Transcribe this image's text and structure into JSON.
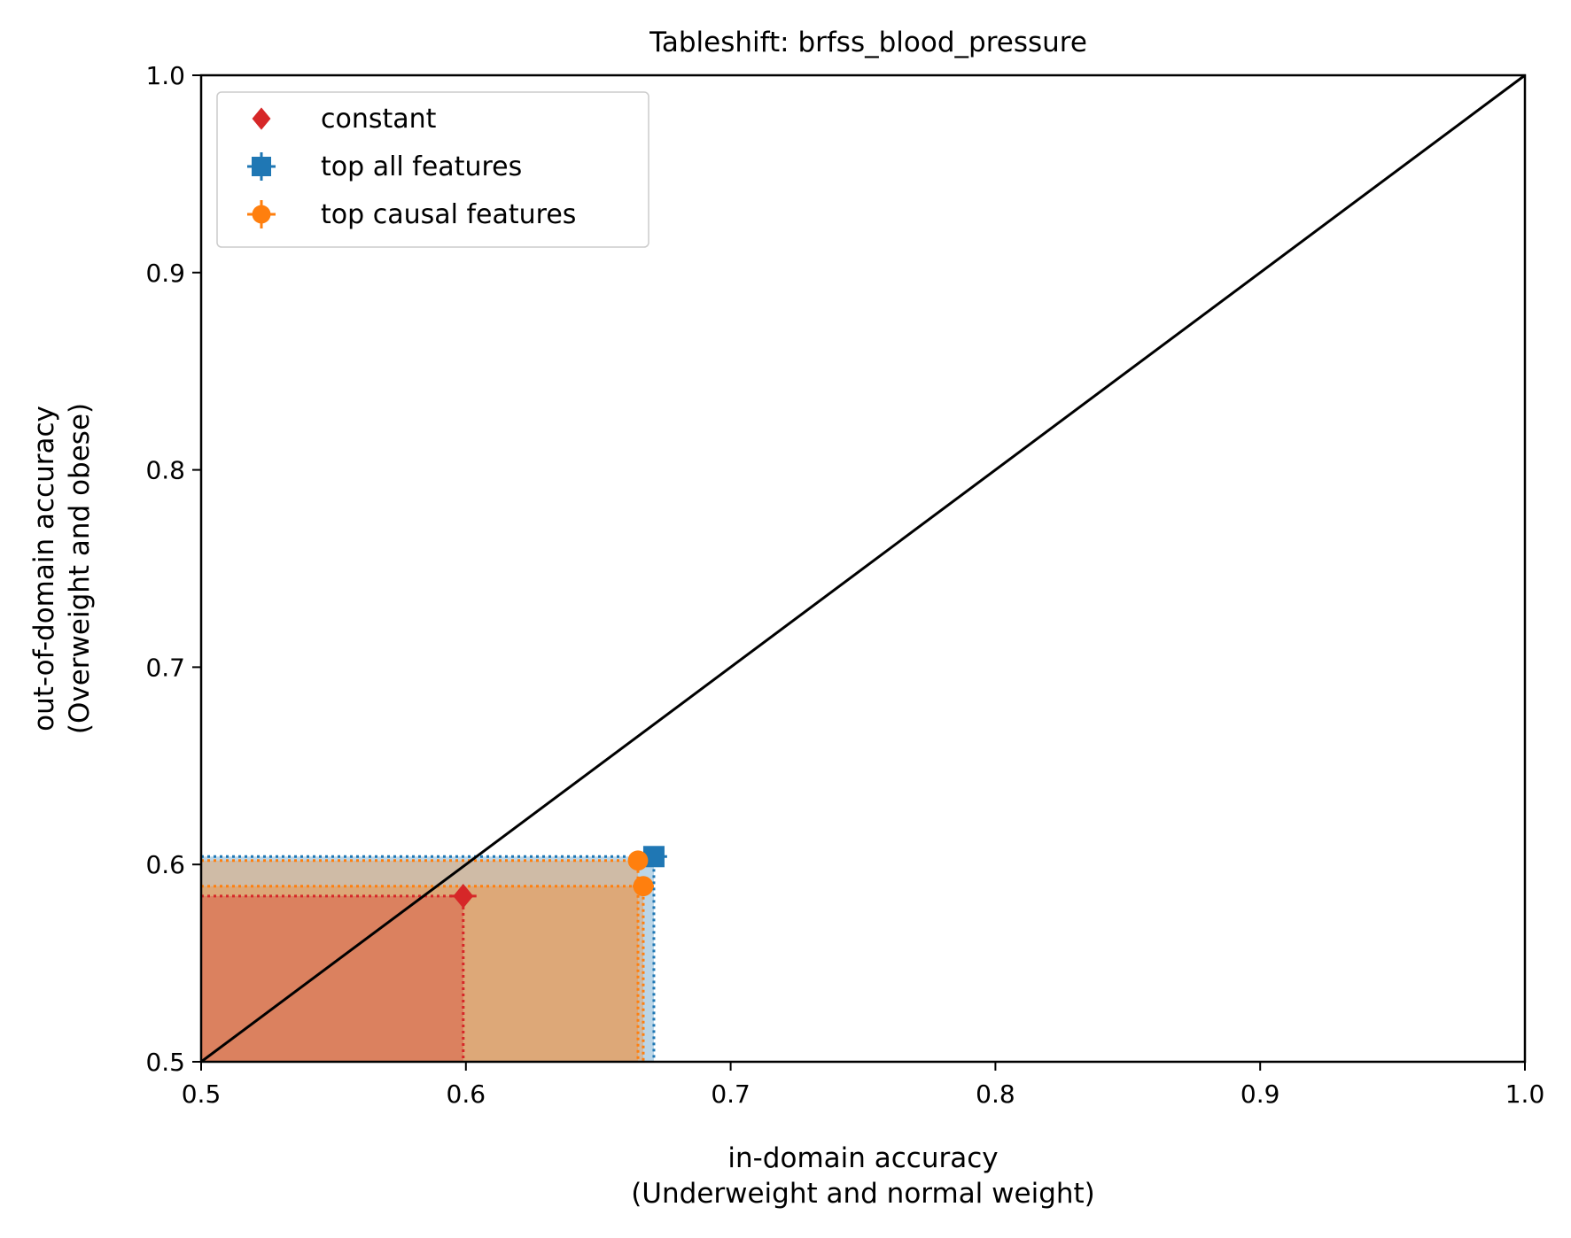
{
  "chart_data": {
    "type": "scatter",
    "title": "Tableshift: brfss_blood_pressure",
    "xlabel": [
      "in-domain accuracy",
      "(Underweight and normal weight)"
    ],
    "ylabel": [
      "out-of-domain accuracy",
      "(Overweight and obese)"
    ],
    "xlim": [
      0.5,
      1.0
    ],
    "ylim": [
      0.5,
      1.0
    ],
    "xticks": [
      "0.5",
      "0.6",
      "0.7",
      "0.8",
      "0.9",
      "1.0"
    ],
    "yticks": [
      "0.5",
      "0.6",
      "0.7",
      "0.8",
      "0.9",
      "1.0"
    ],
    "grid": false,
    "legend_position": "top-left",
    "diagonal": {
      "from": [
        0.5,
        0.5
      ],
      "to": [
        1.0,
        1.0
      ],
      "color": "#000000"
    },
    "series": [
      {
        "name": "constant",
        "marker": "diamond",
        "color": "#d62728",
        "points": [
          {
            "x": 0.599,
            "y": 0.584,
            "xerr": 0.005,
            "yerr": 0.0
          }
        ]
      },
      {
        "name": "top all features",
        "marker": "square",
        "color": "#1f77b4",
        "points": [
          {
            "x": 0.671,
            "y": 0.604,
            "xerr": 0.005,
            "yerr": 0.002
          }
        ]
      },
      {
        "name": "top causal features",
        "marker": "circle",
        "color": "#ff7f0e",
        "points": [
          {
            "x": 0.665,
            "y": 0.602,
            "xerr": 0.0,
            "yerr": 0.0
          },
          {
            "x": 0.667,
            "y": 0.589,
            "xerr": 0.004,
            "yerr": 0.002
          }
        ]
      }
    ]
  }
}
